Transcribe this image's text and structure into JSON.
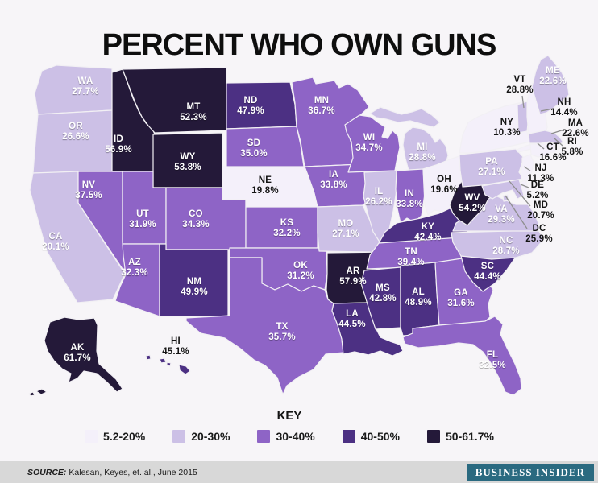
{
  "title": "PERCENT WHO OWN GUNS",
  "key": {
    "label": "KEY"
  },
  "chart_data": {
    "type": "heatmap",
    "title": "PERCENT WHO OWN GUNS",
    "unit": "percent of adults who own guns",
    "legend_position": "bottom",
    "value_range": [
      5.2,
      61.7
    ],
    "buckets": [
      {
        "range": "5.2-20%",
        "max": 20,
        "color": "#f4f0fa"
      },
      {
        "range": "20-30%",
        "max": 30,
        "color": "#ccc0e6"
      },
      {
        "range": "30-40%",
        "max": 40,
        "color": "#8e64c6"
      },
      {
        "range": "40-50%",
        "max": 50,
        "color": "#4c3083"
      },
      {
        "range": "50-61.7%",
        "max": 62,
        "color": "#241939"
      }
    ],
    "states": [
      {
        "abbr": "WA",
        "value": 27.7
      },
      {
        "abbr": "OR",
        "value": 26.6
      },
      {
        "abbr": "CA",
        "value": 20.1
      },
      {
        "abbr": "NV",
        "value": 37.5
      },
      {
        "abbr": "ID",
        "value": 56.9
      },
      {
        "abbr": "MT",
        "value": 52.3
      },
      {
        "abbr": "WY",
        "value": 53.8
      },
      {
        "abbr": "UT",
        "value": 31.9
      },
      {
        "abbr": "CO",
        "value": 34.3
      },
      {
        "abbr": "AZ",
        "value": 32.3
      },
      {
        "abbr": "NM",
        "value": 49.9
      },
      {
        "abbr": "ND",
        "value": 47.9
      },
      {
        "abbr": "SD",
        "value": 35.0
      },
      {
        "abbr": "NE",
        "value": 19.8
      },
      {
        "abbr": "KS",
        "value": 32.2
      },
      {
        "abbr": "OK",
        "value": 31.2
      },
      {
        "abbr": "TX",
        "value": 35.7
      },
      {
        "abbr": "MN",
        "value": 36.7
      },
      {
        "abbr": "IA",
        "value": 33.8
      },
      {
        "abbr": "MO",
        "value": 27.1
      },
      {
        "abbr": "AR",
        "value": 57.9
      },
      {
        "abbr": "LA",
        "value": 44.5
      },
      {
        "abbr": "WI",
        "value": 34.7
      },
      {
        "abbr": "IL",
        "value": 26.2
      },
      {
        "abbr": "MI",
        "value": 28.8
      },
      {
        "abbr": "IN",
        "value": 33.8
      },
      {
        "abbr": "OH",
        "value": 19.6
      },
      {
        "abbr": "KY",
        "value": 42.4
      },
      {
        "abbr": "TN",
        "value": 39.4
      },
      {
        "abbr": "MS",
        "value": 42.8
      },
      {
        "abbr": "AL",
        "value": 48.9
      },
      {
        "abbr": "GA",
        "value": 31.6
      },
      {
        "abbr": "FL",
        "value": 32.5
      },
      {
        "abbr": "SC",
        "value": 44.4
      },
      {
        "abbr": "NC",
        "value": 28.7
      },
      {
        "abbr": "VA",
        "value": 29.3
      },
      {
        "abbr": "WV",
        "value": 54.2
      },
      {
        "abbr": "PA",
        "value": 27.1
      },
      {
        "abbr": "NY",
        "value": 10.3
      },
      {
        "abbr": "VT",
        "value": 28.8
      },
      {
        "abbr": "NH",
        "value": 14.4
      },
      {
        "abbr": "ME",
        "value": 22.6
      },
      {
        "abbr": "MA",
        "value": 22.6
      },
      {
        "abbr": "RI",
        "value": 5.8
      },
      {
        "abbr": "CT",
        "value": 16.6
      },
      {
        "abbr": "NJ",
        "value": 11.3
      },
      {
        "abbr": "DE",
        "value": 5.2
      },
      {
        "abbr": "MD",
        "value": 20.7
      },
      {
        "abbr": "DC",
        "value": 25.9
      },
      {
        "abbr": "AK",
        "value": 61.7
      },
      {
        "abbr": "HI",
        "value": 45.1
      }
    ]
  },
  "colors": {
    "background": "#f7f5f8",
    "state_border": "#f2f0f4",
    "callout_line": "#8e8e8e",
    "label_light": "#ffffff",
    "label_dark": "#141414",
    "footer_bar": "#d8d8d8",
    "logo_bg": "#2a6a80",
    "logo_text": "#ffffff"
  },
  "footer": {
    "source_prefix": "SOURCE:",
    "source_text": "Kalesan, Keyes, et. al., June 2015",
    "logo": "BUSINESS INSIDER"
  }
}
